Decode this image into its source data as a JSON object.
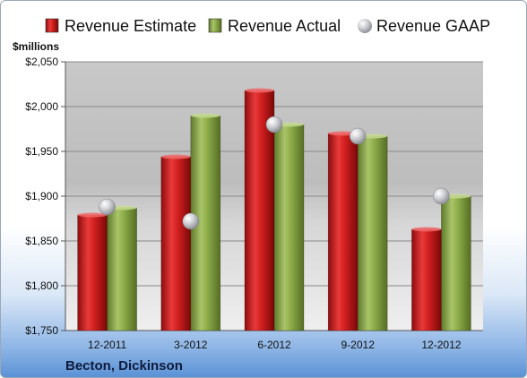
{
  "chart_data": {
    "type": "bar",
    "categories": [
      "12-2011",
      "3-2012",
      "6-2012",
      "9-2012",
      "12-2012"
    ],
    "series": [
      {
        "name": "Revenue Estimate",
        "kind": "bar",
        "color": "#cc1f1f",
        "values": [
          1879,
          1944,
          2018,
          1970,
          1863
        ]
      },
      {
        "name": "Revenue Actual",
        "kind": "bar",
        "color": "#8fae4a",
        "values": [
          1887,
          1990,
          1980,
          1967,
          1900
        ]
      },
      {
        "name": "Revenue GAAP",
        "kind": "marker",
        "color": "#c9cbd0",
        "values": [
          1888,
          1872,
          1980,
          1967,
          1900
        ]
      }
    ],
    "ylabel": "$millions",
    "ylim": [
      1750,
      2050
    ],
    "yticks": [
      1750,
      1800,
      1850,
      1900,
      1950,
      2000,
      2050
    ],
    "ytick_labels": [
      "$1,750",
      "$1,800",
      "$1,850",
      "$1,900",
      "$1,950",
      "$2,000",
      "$2,050"
    ],
    "grid": true,
    "legend_position": "top"
  },
  "footer": {
    "company": "Becton, Dickinson"
  }
}
